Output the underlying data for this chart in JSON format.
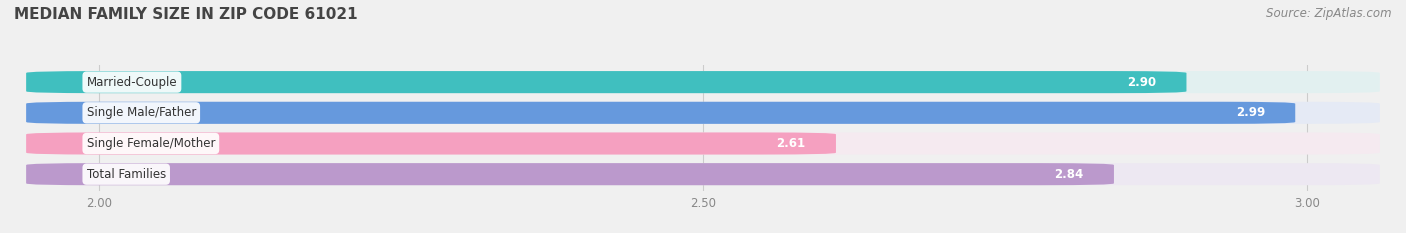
{
  "title": "MEDIAN FAMILY SIZE IN ZIP CODE 61021",
  "source": "Source: ZipAtlas.com",
  "categories": [
    "Married-Couple",
    "Single Male/Father",
    "Single Female/Mother",
    "Total Families"
  ],
  "values": [
    2.9,
    2.99,
    2.61,
    2.84
  ],
  "value_labels": [
    "2.90",
    "2.99",
    "2.61",
    "2.84"
  ],
  "bar_colors": [
    "#40bfbf",
    "#6699dd",
    "#f5a0c0",
    "#bb99cc"
  ],
  "bar_bg_colors": [
    "#e2f0f0",
    "#e5eaf5",
    "#f5eaf0",
    "#ede8f2"
  ],
  "xlim_min": 1.93,
  "xlim_max": 3.07,
  "data_min": 0.0,
  "xticks": [
    2.0,
    2.5,
    3.0
  ],
  "xtick_labels": [
    "2.00",
    "2.50",
    "3.00"
  ],
  "bar_height": 0.72,
  "bg_color": "#f0f0f0",
  "title_fontsize": 11,
  "label_fontsize": 8.5,
  "value_fontsize": 8.5,
  "source_fontsize": 8.5
}
